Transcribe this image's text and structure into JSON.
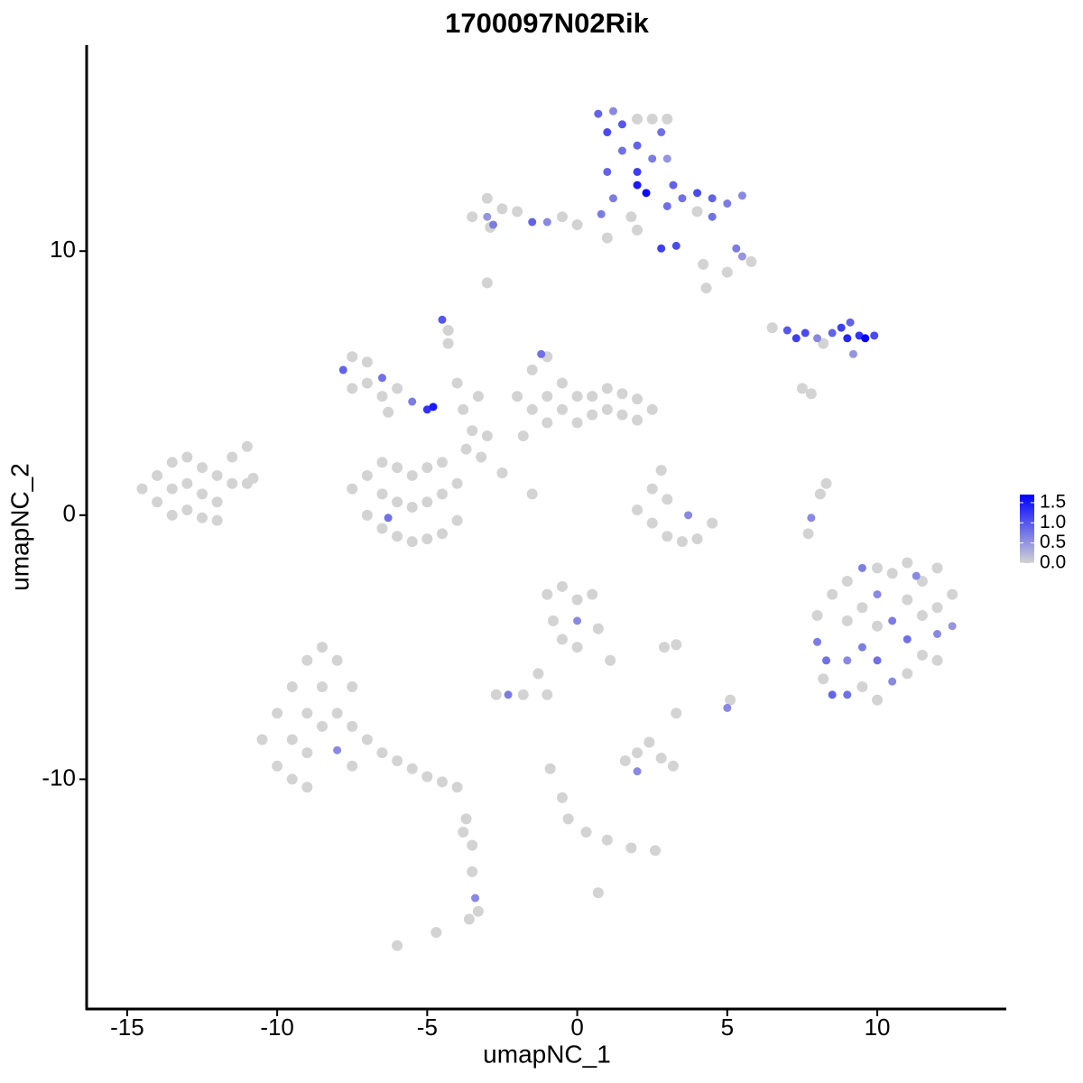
{
  "chart_data": {
    "type": "scatter",
    "title": "1700097N02Rik",
    "x_label": "umapNC_1",
    "y_label": "umapNC_2",
    "xlim": [
      -16.35,
      14.3
    ],
    "ylim": [
      -18.7,
      17.8
    ],
    "xticks": [
      -15,
      -10,
      -5,
      0,
      5,
      10
    ],
    "yticks": [
      -10,
      0,
      10
    ],
    "color_scale": {
      "low": "#d3d3d3",
      "high": "#0000ff",
      "lim": [
        0,
        1.7
      ],
      "ticks": [
        {
          "value": 0,
          "label": "0.0"
        },
        {
          "value": 0.5,
          "label": "0.5"
        },
        {
          "value": 1,
          "label": "1.0"
        },
        {
          "value": 1.5,
          "label": "1.5"
        }
      ]
    },
    "x": [
      -14.5,
      -14,
      -14,
      -13.5,
      -13.5,
      -13.5,
      -13,
      -13,
      -13,
      -12.5,
      -12.5,
      -12.5,
      -12,
      -12,
      -11.5,
      -11.5,
      -11,
      -11,
      -10.8,
      -12,
      -7.5,
      -7,
      -7,
      -6.5,
      -6.5,
      -6.5,
      -6,
      -6,
      -6,
      -5.5,
      -5.5,
      -5.5,
      -5,
      -5,
      -5,
      -4.5,
      -4.5,
      -4.5,
      -4,
      -4,
      -6.3,
      -3.7,
      -3.5,
      -3,
      -3.2,
      -2.5,
      -1.5,
      -4.5,
      -4.3,
      -4.3,
      -4,
      -3.8,
      -3.3,
      -7.8,
      -7.5,
      -7,
      -7,
      -6.5,
      -6.5,
      -6,
      -5.5,
      -5,
      -4.8,
      -6.3,
      -7.5,
      -2,
      -1.5,
      -1.5,
      -1,
      -1,
      -1,
      -0.5,
      -0.5,
      0,
      0,
      0.5,
      0.5,
      1,
      1,
      1.5,
      1.5,
      2,
      2,
      2.5,
      -1.2,
      -1.8,
      0.7,
      1,
      1.2,
      1.5,
      1.5,
      2,
      2,
      2,
      2.5,
      2.5,
      2.8,
      3,
      3,
      1,
      1.2,
      2,
      2.3,
      3.2,
      3.5,
      4,
      4.5,
      5,
      5.5,
      4,
      3,
      3.3,
      2.8,
      4.5,
      5.3,
      5.8,
      5,
      4.2,
      5.5,
      1.8,
      0.8,
      0,
      -0.5,
      -1,
      -1.5,
      -2,
      -2.5,
      -3,
      -3,
      -3.5,
      -2.8,
      -2.9,
      -3,
      1,
      2,
      4.3,
      6.5,
      7,
      7.3,
      7.6,
      8,
      8.5,
      8.8,
      9,
      9.4,
      9.6,
      9.9,
      9.1,
      8.2,
      9.2,
      7.5,
      7.8,
      8,
      8,
      8.3,
      8.5,
      8.5,
      9,
      9,
      9,
      9,
      9.5,
      9.5,
      9.5,
      9.5,
      10,
      10,
      10,
      10,
      10,
      10.5,
      10.5,
      10.5,
      11,
      11,
      11,
      11,
      11.5,
      11.5,
      11.5,
      12,
      12,
      12,
      12,
      12.5,
      12.5,
      8.2,
      11.3,
      2,
      2.5,
      2.5,
      3,
      3,
      3.5,
      3.7,
      4,
      4.5,
      2.8,
      7.8,
      8.1,
      8.3,
      7.7,
      -1,
      -0.5,
      0,
      0.5,
      -0.8,
      0,
      0.7,
      0,
      1.1,
      -0.5,
      -1.3,
      -1.8,
      -2.3,
      -2.7,
      -1,
      2.9,
      3.3,
      5,
      5.1,
      3.3,
      -10.5,
      -10,
      -10,
      -9.5,
      -9.5,
      -9.5,
      -9,
      -9,
      -9,
      -8.5,
      -8.5,
      -8.5,
      -8,
      -8,
      -8,
      -7.5,
      -7.5,
      -7.5,
      -7,
      -6.5,
      -6,
      -5.5,
      -5,
      -4.5,
      -4,
      -9,
      -3.7,
      -3.5,
      -3.5,
      -3.4,
      -3.3,
      -3.6,
      -6,
      -4.7,
      -3.8,
      1.6,
      2,
      2.4,
      2.8,
      3.2,
      2,
      -0.9,
      -0.5,
      -0.3,
      0.3,
      1,
      1.8,
      2.6,
      0.7
    ],
    "y": [
      1,
      1.5,
      0.5,
      2,
      1,
      0,
      2.2,
      1.2,
      0.2,
      1.8,
      0.8,
      -0.1,
      1.5,
      0.5,
      1.2,
      2.2,
      2.6,
      1.2,
      1.4,
      -0.2,
      1,
      0,
      1.5,
      -0.5,
      0.8,
      2,
      -0.8,
      0.5,
      1.8,
      -1,
      0.3,
      1.5,
      -0.9,
      0.5,
      1.8,
      -0.7,
      0.8,
      2,
      -0.2,
      1.2,
      -0.1,
      2.5,
      3.2,
      3,
      2.2,
      1.6,
      0.8,
      7.4,
      7,
      6.5,
      5,
      4,
      4.5,
      5.5,
      6,
      5.8,
      5,
      5.2,
      4.5,
      4.8,
      4.3,
      4,
      4.1,
      3.9,
      4.8,
      4.5,
      5.5,
      4,
      6,
      4.5,
      3.5,
      5,
      4,
      4.5,
      3.5,
      4.5,
      3.8,
      4.8,
      4,
      4.6,
      3.8,
      4.4,
      3.6,
      4,
      6.1,
      3,
      15.2,
      14.5,
      15.3,
      13.8,
      14.8,
      15,
      14,
      13,
      15,
      13.5,
      14.5,
      15,
      13.5,
      13,
      12,
      12.5,
      12.2,
      12.5,
      12,
      12.2,
      12,
      11.8,
      12.1,
      11.5,
      11.7,
      10.2,
      10.1,
      11.3,
      10.1,
      9.6,
      9.2,
      9.5,
      9.8,
      11.3,
      11.4,
      11,
      11.3,
      11.1,
      11.1,
      11.5,
      11.6,
      12,
      11.3,
      11.3,
      11,
      10.9,
      8.8,
      10.5,
      10.8,
      8.6,
      7.1,
      7,
      6.7,
      6.9,
      6.7,
      6.9,
      7.1,
      6.7,
      6.8,
      6.7,
      6.8,
      7.3,
      6.5,
      6.1,
      4.8,
      4.6,
      -3.8,
      -4.8,
      -5.5,
      -3,
      -6.8,
      -2.5,
      -4,
      -5.5,
      -6.8,
      -2,
      -3.5,
      -5,
      -6.5,
      -2,
      -3,
      -4.2,
      -5.5,
      -7,
      -2.2,
      -4,
      -6.3,
      -1.8,
      -3.2,
      -4.7,
      -6,
      -2.5,
      -3.8,
      -5.3,
      -2,
      -3.5,
      -4.5,
      -5.5,
      -3,
      -4.2,
      -6.2,
      -2.3,
      0.2,
      1,
      -0.3,
      0.6,
      -0.8,
      -1,
      0,
      -0.9,
      -0.3,
      1.7,
      -0.1,
      0.8,
      1.2,
      -0.7,
      -3,
      -2.7,
      -3.2,
      -3,
      -4,
      -4,
      -4.3,
      -5,
      -5.5,
      -4.7,
      -6,
      -6.8,
      -6.8,
      -6.8,
      -6.8,
      -5,
      -4.9,
      -7.3,
      -7,
      -7.5,
      -8.5,
      -7.5,
      -9.5,
      -6.5,
      -8.5,
      -10,
      -5.5,
      -7.5,
      -9,
      -5,
      -6.5,
      -8,
      -5.5,
      -7.5,
      -8.9,
      -6.5,
      -8,
      -9.5,
      -8.5,
      -9,
      -9.3,
      -9.6,
      -9.9,
      -10.1,
      -10.3,
      -10.3,
      -11.5,
      -12.5,
      -13.5,
      -14.5,
      -15,
      -15.3,
      -16.3,
      -15.8,
      -12,
      -9.3,
      -9,
      -8.6,
      -9.2,
      -9.5,
      -9.7,
      -9.6,
      -10.7,
      -11.5,
      -12,
      -12.3,
      -12.6,
      -12.7,
      -14.3
    ],
    "values": [
      0,
      0,
      0,
      0,
      0,
      0,
      0,
      0,
      0,
      0,
      0,
      0,
      0,
      0,
      0,
      0,
      0,
      0,
      0,
      0,
      0,
      0,
      0,
      0,
      0,
      0,
      0,
      0,
      0,
      0,
      0,
      0,
      0,
      0,
      0,
      0,
      0,
      0,
      0,
      0,
      0.8,
      0,
      0,
      0,
      0,
      0,
      0,
      1.0,
      0,
      0,
      0,
      0,
      0,
      0.9,
      0,
      0,
      0,
      0.8,
      0,
      0,
      0.7,
      1.3,
      1.5,
      0,
      0,
      0,
      0,
      0,
      0,
      0,
      0,
      0,
      0,
      0,
      0,
      0,
      0,
      0,
      0,
      0,
      0,
      0,
      0,
      0,
      0.8,
      0,
      0.9,
      1.1,
      0.6,
      0.8,
      1.0,
      0,
      0.9,
      1.2,
      0,
      0.7,
      0.8,
      0,
      0.5,
      0.9,
      0.7,
      1.5,
      1.6,
      0.9,
      0.8,
      1.1,
      0.9,
      0.7,
      0.6,
      0,
      0.8,
      1.1,
      1.2,
      0.8,
      0.7,
      0,
      0,
      0,
      0.5,
      0,
      0.7,
      0,
      0,
      0.6,
      0.9,
      0,
      0,
      0,
      0.5,
      0,
      0.7,
      0,
      0,
      0,
      0,
      0,
      0,
      1.0,
      1.2,
      1.1,
      0.6,
      0.9,
      1.2,
      1.4,
      1.3,
      1.7,
      1.1,
      0.9,
      0,
      0.5,
      0,
      0,
      0,
      0.7,
      0.8,
      0,
      0.9,
      0,
      0,
      0.6,
      0.8,
      0.7,
      0,
      0.7,
      0,
      0,
      0.6,
      0,
      0.8,
      0,
      0,
      0.7,
      0.6,
      0,
      0,
      0.8,
      0,
      0,
      0,
      0,
      0,
      0,
      0.6,
      0,
      0,
      0.5,
      0,
      0.6,
      0,
      0,
      0,
      0,
      0,
      0,
      0.6,
      0,
      0,
      0,
      0.6,
      0,
      0,
      0,
      0,
      0,
      0,
      0,
      0,
      0.6,
      0,
      0,
      0,
      0,
      0,
      0,
      0.7,
      0,
      0,
      0,
      0,
      0.6,
      0,
      0,
      0,
      0,
      0,
      0,
      0,
      0,
      0,
      0,
      0,
      0,
      0,
      0,
      0,
      0,
      0.6,
      0,
      0,
      0,
      0,
      0,
      0,
      0,
      0,
      0,
      0,
      0,
      0,
      0,
      0,
      0.6,
      0,
      0,
      0,
      0,
      0,
      0,
      0,
      0,
      0,
      0,
      0.6,
      0,
      0,
      0,
      0,
      0,
      0,
      0,
      0
    ]
  }
}
